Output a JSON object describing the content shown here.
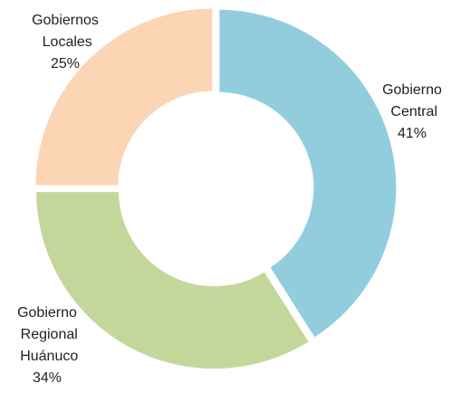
{
  "chart_data": {
    "type": "donut",
    "categories": [
      "Gobierno Central",
      "Gobierno Regional Huánuco",
      "Gobiernos Locales"
    ],
    "values": [
      41,
      34,
      25
    ],
    "value_labels": [
      "41%",
      "34%",
      "25%"
    ],
    "colors": [
      "#92cddd",
      "#c4d79b",
      "#fcd5b4"
    ]
  }
}
